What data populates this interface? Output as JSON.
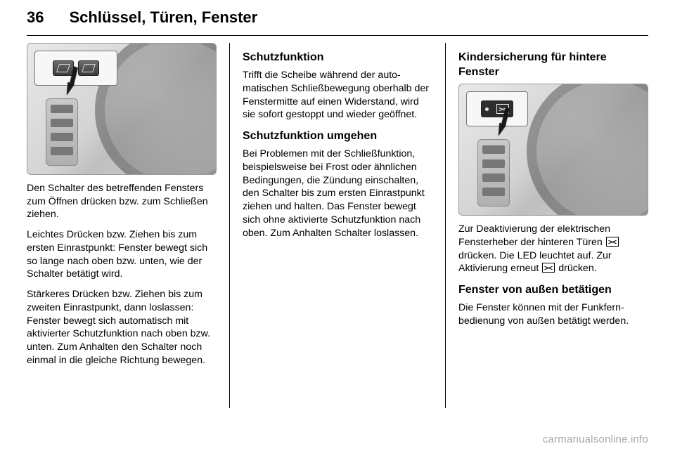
{
  "page": {
    "number": "36",
    "section": "Schlüssel, Türen, Fenster"
  },
  "col1": {
    "p1": "Den Schalter des betreffenden Fens­ters zum Öffnen drücken bzw. zum Schließen ziehen.",
    "p2": "Leichtes Drücken bzw. Ziehen bis zum ersten Einrastpunkt: Fenster bewegt sich so lange nach oben bzw. unten, wie der Schalter betätigt wird.",
    "p3": "Stärkeres Drücken bzw. Ziehen bis zum zweiten Einrastpunkt, dann los­lassen: Fenster bewegt sich auto­matisch mit aktivierter Schutzfunktion nach oben bzw. unten. Zum Anhalten den Schalter noch einmal in die gleiche Richtung bewegen."
  },
  "col2": {
    "h1": "Schutzfunktion",
    "p1": "Trifft die Scheibe während der auto­matischen Schließbewegung ober­halb der Fenstermitte auf einen Widerstand, wird sie sofort gestoppt und wieder geöffnet.",
    "h2": "Schutzfunktion umgehen",
    "p2": "Bei Problemen mit der Schließfunk­tion, beispielsweise bei Frost oder ähnlichen Bedingungen, die Zündung einschalten, den Schalter bis zum ersten Einrastpunkt ziehen und halten. Das Fenster bewegt sich ohne aktivierte Schutzfunktion nach oben. Zum Anhalten Schalter loslassen."
  },
  "col3": {
    "h1": "Kindersicherung für hintere Fenster",
    "p1a": "Zur Deaktivierung der elektrischen Fensterheber der hinteren Türen ",
    "p1b": " drücken. Die LED leuchtet auf. Zur Aktivierung erneut ",
    "p1c": " drücken.",
    "h2": "Fenster von außen betätigen",
    "p2": "Die Fenster können mit der Funkfern­bedienung von außen betätigt werden."
  },
  "footer": "carmanualsonline.info"
}
